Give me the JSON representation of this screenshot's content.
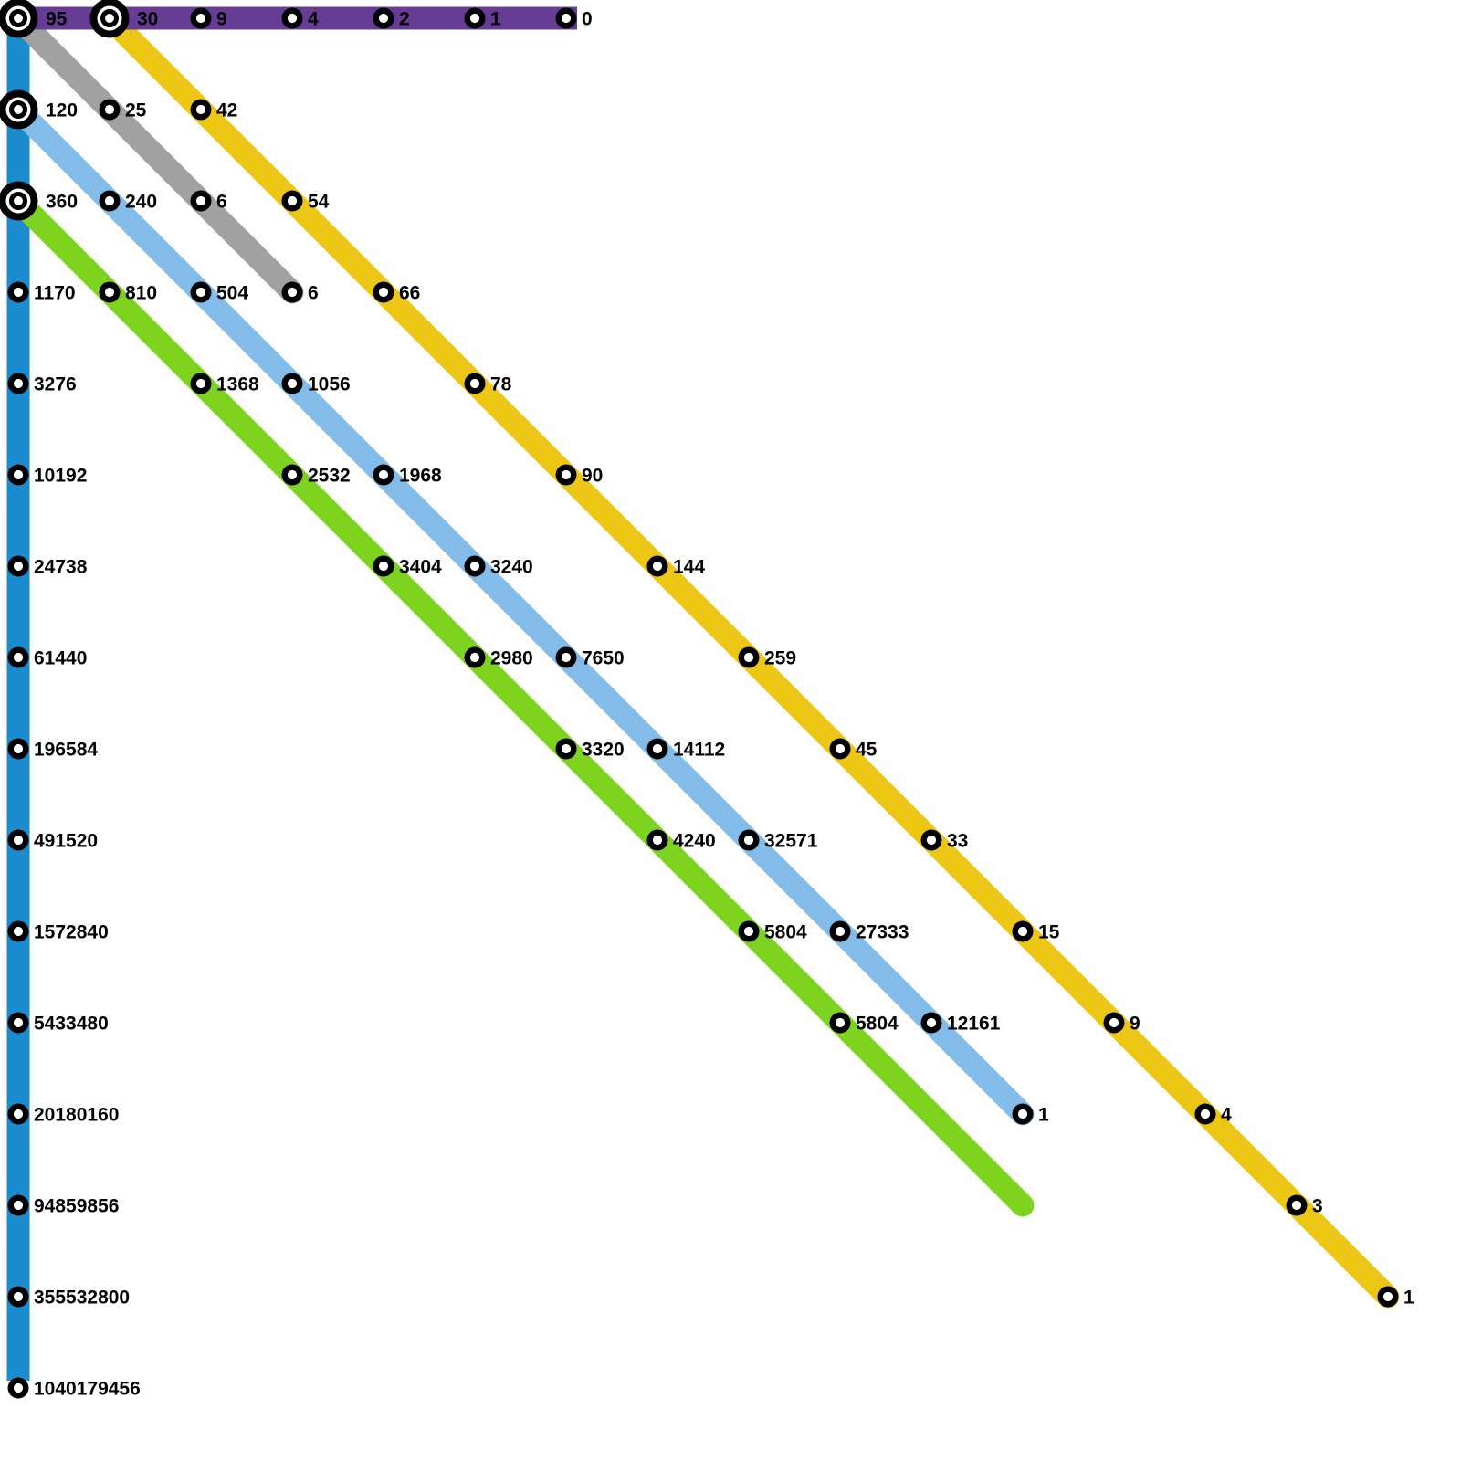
{
  "map": {
    "background": "#ffffff",
    "lines": [
      {
        "id": "blue",
        "name": "blue-vertical-line",
        "color": "#1b8dce",
        "from": [
          0,
          0
        ],
        "to": [
          0,
          15
        ],
        "cap": "butt",
        "extend_start": 12,
        "extend_end": -8
      },
      {
        "id": "gray",
        "name": "gray-diagonal-line",
        "color": "#a1a1a1",
        "from": [
          0,
          0
        ],
        "to": [
          3,
          3
        ],
        "cap": "round",
        "extend_start": 0,
        "extend_end": 0
      },
      {
        "id": "yellow",
        "name": "yellow-diagonal-line",
        "color": "#ecc716",
        "from": [
          1,
          0
        ],
        "to": [
          15,
          14
        ],
        "cap": "round",
        "extend_start": 0,
        "extend_end": 0
      },
      {
        "id": "lightblue",
        "name": "lightblue-diagonal-line",
        "color": "#83bce8",
        "from": [
          0,
          1
        ],
        "to": [
          11,
          12
        ],
        "cap": "round",
        "extend_start": 0,
        "extend_end": 0
      },
      {
        "id": "green",
        "name": "green-diagonal-line",
        "color": "#7ed321",
        "from": [
          0,
          2
        ],
        "to": [
          11,
          13
        ],
        "cap": "round",
        "extend_start": 0,
        "extend_end": 0
      },
      {
        "id": "purple",
        "name": "purple-horizontal-line",
        "color": "#663c94",
        "from": [
          0,
          0
        ],
        "to": [
          6,
          0
        ],
        "cap": "butt",
        "extend_start": 12,
        "extend_end": 12
      }
    ],
    "stations": [
      {
        "col": 0,
        "row": 0,
        "label": "95",
        "type": "interchange",
        "lines": [
          "purple",
          "blue",
          "gray"
        ]
      },
      {
        "col": 1,
        "row": 0,
        "label": "30",
        "type": "interchange",
        "lines": [
          "purple",
          "yellow"
        ]
      },
      {
        "col": 2,
        "row": 0,
        "label": "9",
        "type": "stop",
        "lines": [
          "purple"
        ]
      },
      {
        "col": 3,
        "row": 0,
        "label": "4",
        "type": "stop",
        "lines": [
          "purple"
        ]
      },
      {
        "col": 4,
        "row": 0,
        "label": "2",
        "type": "stop",
        "lines": [
          "purple"
        ]
      },
      {
        "col": 5,
        "row": 0,
        "label": "1",
        "type": "stop",
        "lines": [
          "purple"
        ]
      },
      {
        "col": 6,
        "row": 0,
        "label": "0",
        "type": "stop",
        "lines": [
          "purple"
        ]
      },
      {
        "col": 0,
        "row": 1,
        "label": "120",
        "type": "interchange",
        "lines": [
          "blue",
          "lightblue"
        ]
      },
      {
        "col": 1,
        "row": 1,
        "label": "25",
        "type": "stop",
        "lines": [
          "gray"
        ]
      },
      {
        "col": 2,
        "row": 1,
        "label": "42",
        "type": "stop",
        "lines": [
          "yellow"
        ]
      },
      {
        "col": 0,
        "row": 2,
        "label": "360",
        "type": "interchange",
        "lines": [
          "blue",
          "green"
        ]
      },
      {
        "col": 1,
        "row": 2,
        "label": "240",
        "type": "stop",
        "lines": [
          "lightblue"
        ]
      },
      {
        "col": 2,
        "row": 2,
        "label": "6",
        "type": "stop",
        "lines": [
          "gray"
        ]
      },
      {
        "col": 3,
        "row": 2,
        "label": "54",
        "type": "stop",
        "lines": [
          "yellow"
        ]
      },
      {
        "col": 0,
        "row": 3,
        "label": "1170",
        "type": "stop",
        "lines": [
          "blue"
        ]
      },
      {
        "col": 1,
        "row": 3,
        "label": "810",
        "type": "stop",
        "lines": [
          "green"
        ]
      },
      {
        "col": 2,
        "row": 3,
        "label": "504",
        "type": "stop",
        "lines": [
          "lightblue"
        ]
      },
      {
        "col": 3,
        "row": 3,
        "label": "6",
        "type": "stop",
        "lines": [
          "gray"
        ]
      },
      {
        "col": 4,
        "row": 3,
        "label": "66",
        "type": "stop",
        "lines": [
          "yellow"
        ]
      },
      {
        "col": 0,
        "row": 4,
        "label": "3276",
        "type": "stop",
        "lines": [
          "blue"
        ]
      },
      {
        "col": 2,
        "row": 4,
        "label": "1368",
        "type": "stop",
        "lines": [
          "green"
        ]
      },
      {
        "col": 3,
        "row": 4,
        "label": "1056",
        "type": "stop",
        "lines": [
          "lightblue"
        ]
      },
      {
        "col": 5,
        "row": 4,
        "label": "78",
        "type": "stop",
        "lines": [
          "yellow"
        ]
      },
      {
        "col": 0,
        "row": 5,
        "label": "10192",
        "type": "stop",
        "lines": [
          "blue"
        ]
      },
      {
        "col": 3,
        "row": 5,
        "label": "2532",
        "type": "stop",
        "lines": [
          "green"
        ]
      },
      {
        "col": 4,
        "row": 5,
        "label": "1968",
        "type": "stop",
        "lines": [
          "lightblue"
        ]
      },
      {
        "col": 6,
        "row": 5,
        "label": "90",
        "type": "stop",
        "lines": [
          "yellow"
        ]
      },
      {
        "col": 0,
        "row": 6,
        "label": "24738",
        "type": "stop",
        "lines": [
          "blue"
        ]
      },
      {
        "col": 4,
        "row": 6,
        "label": "3404",
        "type": "stop",
        "lines": [
          "green"
        ]
      },
      {
        "col": 5,
        "row": 6,
        "label": "3240",
        "type": "stop",
        "lines": [
          "lightblue"
        ]
      },
      {
        "col": 7,
        "row": 6,
        "label": "144",
        "type": "stop",
        "lines": [
          "yellow"
        ]
      },
      {
        "col": 0,
        "row": 7,
        "label": "61440",
        "type": "stop",
        "lines": [
          "blue"
        ]
      },
      {
        "col": 5,
        "row": 7,
        "label": "2980",
        "type": "stop",
        "lines": [
          "green"
        ]
      },
      {
        "col": 6,
        "row": 7,
        "label": "7650",
        "type": "stop",
        "lines": [
          "lightblue"
        ]
      },
      {
        "col": 8,
        "row": 7,
        "label": "259",
        "type": "stop",
        "lines": [
          "yellow"
        ]
      },
      {
        "col": 0,
        "row": 8,
        "label": "196584",
        "type": "stop",
        "lines": [
          "blue"
        ]
      },
      {
        "col": 6,
        "row": 8,
        "label": "3320",
        "type": "stop",
        "lines": [
          "green"
        ]
      },
      {
        "col": 7,
        "row": 8,
        "label": "14112",
        "type": "stop",
        "lines": [
          "lightblue"
        ]
      },
      {
        "col": 9,
        "row": 8,
        "label": "45",
        "type": "stop",
        "lines": [
          "yellow"
        ]
      },
      {
        "col": 0,
        "row": 9,
        "label": "491520",
        "type": "stop",
        "lines": [
          "blue"
        ]
      },
      {
        "col": 7,
        "row": 9,
        "label": "4240",
        "type": "stop",
        "lines": [
          "green"
        ]
      },
      {
        "col": 8,
        "row": 9,
        "label": "32571",
        "type": "stop",
        "lines": [
          "lightblue"
        ]
      },
      {
        "col": 10,
        "row": 9,
        "label": "33",
        "type": "stop",
        "lines": [
          "yellow"
        ]
      },
      {
        "col": 0,
        "row": 10,
        "label": "1572840",
        "type": "stop",
        "lines": [
          "blue"
        ]
      },
      {
        "col": 8,
        "row": 10,
        "label": "5804",
        "type": "stop",
        "lines": [
          "green"
        ]
      },
      {
        "col": 9,
        "row": 10,
        "label": "27333",
        "type": "stop",
        "lines": [
          "lightblue"
        ]
      },
      {
        "col": 11,
        "row": 10,
        "label": "15",
        "type": "stop",
        "lines": [
          "yellow"
        ]
      },
      {
        "col": 0,
        "row": 11,
        "label": "5433480",
        "type": "stop",
        "lines": [
          "blue"
        ]
      },
      {
        "col": 9,
        "row": 11,
        "label": "5804",
        "type": "stop",
        "lines": [
          "green"
        ]
      },
      {
        "col": 10,
        "row": 11,
        "label": "12161",
        "type": "stop",
        "lines": [
          "lightblue"
        ]
      },
      {
        "col": 12,
        "row": 11,
        "label": "9",
        "type": "stop",
        "lines": [
          "yellow"
        ]
      },
      {
        "col": 0,
        "row": 12,
        "label": "20180160",
        "type": "stop",
        "lines": [
          "blue"
        ]
      },
      {
        "col": 11,
        "row": 12,
        "label": "1",
        "type": "stop",
        "lines": [
          "lightblue"
        ]
      },
      {
        "col": 13,
        "row": 12,
        "label": "4",
        "type": "stop",
        "lines": [
          "yellow"
        ]
      },
      {
        "col": 0,
        "row": 13,
        "label": "94859856",
        "type": "stop",
        "lines": [
          "blue"
        ]
      },
      {
        "col": 14,
        "row": 13,
        "label": "3",
        "type": "stop",
        "lines": [
          "yellow"
        ]
      },
      {
        "col": 0,
        "row": 14,
        "label": "355532800",
        "type": "stop",
        "lines": [
          "blue"
        ]
      },
      {
        "col": 15,
        "row": 14,
        "label": "1",
        "type": "stop",
        "lines": [
          "yellow"
        ]
      },
      {
        "col": 0,
        "row": 15,
        "label": "1040179456",
        "type": "stop",
        "lines": [
          "blue"
        ]
      }
    ]
  }
}
